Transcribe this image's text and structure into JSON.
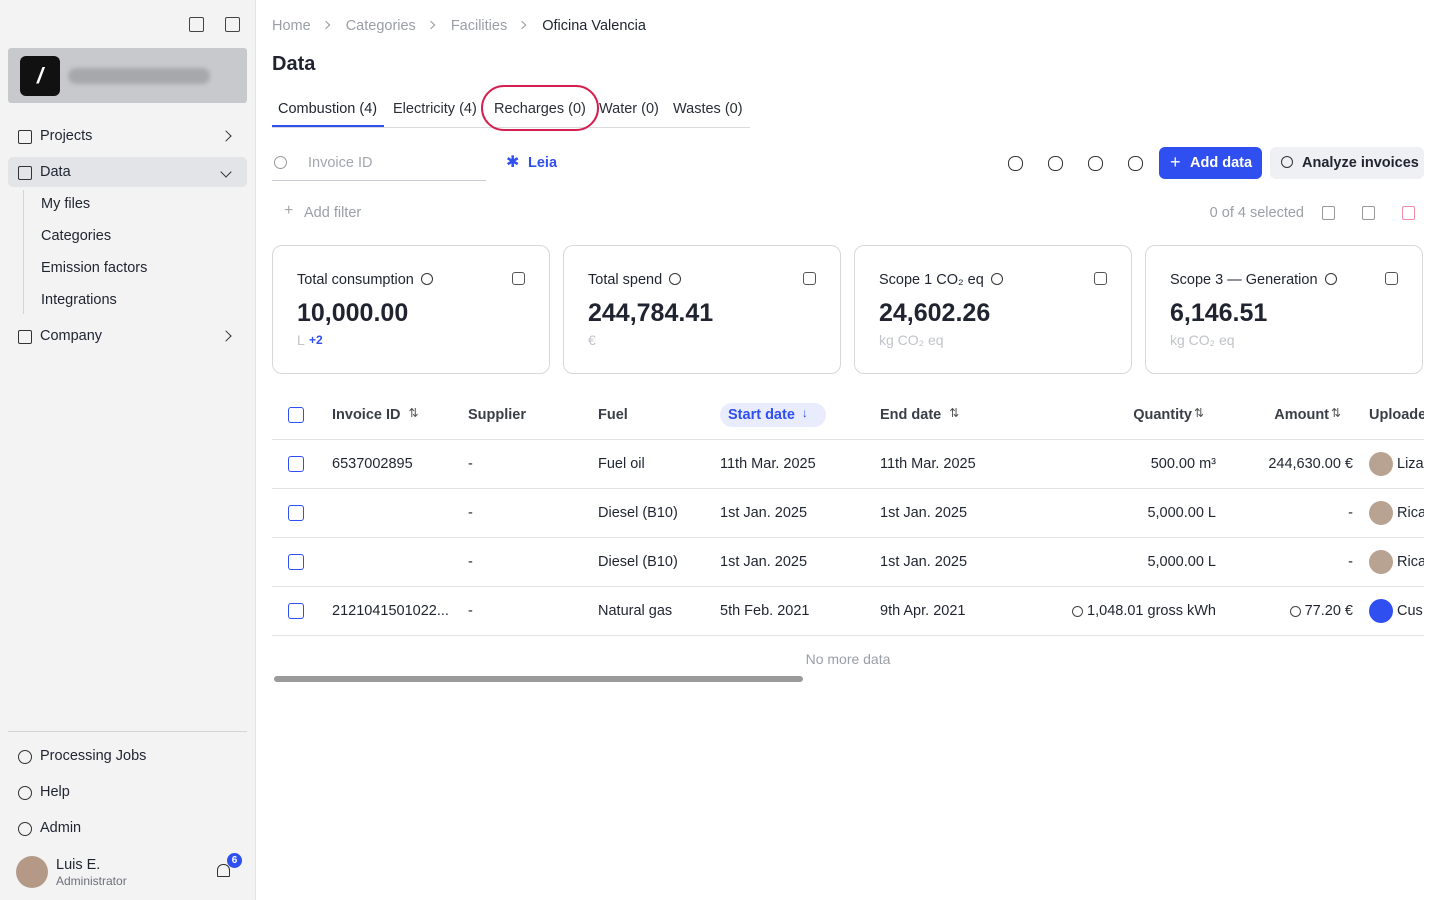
{
  "sidebar": {
    "nav": [
      {
        "label": "Projects"
      },
      {
        "label": "Data",
        "children": [
          "My files",
          "Categories",
          "Emission factors",
          "Integrations"
        ]
      },
      {
        "label": "Company"
      }
    ],
    "bottom": [
      "Processing Jobs",
      "Help",
      "Admin"
    ],
    "user": {
      "name": "Luis E.",
      "role": "Administrator",
      "notifications": 6
    }
  },
  "breadcrumb": [
    "Home",
    "Categories",
    "Facilities",
    "Oficina Valencia"
  ],
  "title": "Data",
  "tabs": [
    "Combustion (4)",
    "Electricity (4)",
    "Recharges (0)",
    "Water (0)",
    "Wastes (0)"
  ],
  "search_placeholder": "Invoice ID",
  "leia": "Leia",
  "buttons": {
    "add": "Add data",
    "analyze": "Analyze invoices",
    "filter": "Add filter"
  },
  "selection": "0 of 4 selected",
  "cards": [
    {
      "title": "Total consumption",
      "value": "10,000.00",
      "unit": "L",
      "extra": "+2"
    },
    {
      "title": "Total spend",
      "value": "244,784.41",
      "unit": "€"
    },
    {
      "title": "Scope 1 CO₂ eq",
      "value": "24,602.26",
      "unit": "kg CO₂ eq"
    },
    {
      "title": "Scope 3 — Generation",
      "value": "6,146.51",
      "unit": "kg CO₂ eq"
    }
  ],
  "table": {
    "headers": [
      "Invoice ID",
      "Supplier",
      "Fuel",
      "Start date",
      "End date",
      "Quantity",
      "Amount",
      "Uploade"
    ],
    "rows": [
      [
        "6537002895",
        "-",
        "Fuel oil",
        "11th Mar. 2025",
        "11th Mar. 2025",
        "500.00 m³",
        "244,630.00 €",
        "Liza"
      ],
      [
        "",
        "-",
        "Diesel (B10)",
        "1st Jan. 2025",
        "1st Jan. 2025",
        "5,000.00 L",
        "-",
        "Rica"
      ],
      [
        "",
        "-",
        "Diesel (B10)",
        "1st Jan. 2025",
        "1st Jan. 2025",
        "5,000.00 L",
        "-",
        "Rica"
      ],
      [
        "2121041501022...",
        "-",
        "Natural gas",
        "5th Feb. 2021",
        "9th Apr. 2021",
        "1,048.01 gross kWh",
        "77.20 €",
        "Cus"
      ]
    ]
  },
  "footer": "No more data"
}
